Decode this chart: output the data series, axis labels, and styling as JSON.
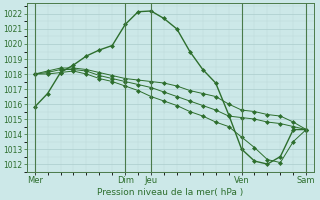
{
  "title": "Pression niveau de la mer( hPa )",
  "bg_color": "#cce8e8",
  "grid_major_color": "#aacccc",
  "grid_minor_color": "#bcd8d8",
  "line_color": "#2d6e2d",
  "vline_color": "#4a7a4a",
  "ylim": [
    1011.5,
    1022.7
  ],
  "yticks": [
    1012,
    1013,
    1014,
    1015,
    1016,
    1017,
    1018,
    1019,
    1020,
    1021,
    1022
  ],
  "xtick_pos": [
    0,
    3.5,
    4.5,
    8.0,
    10.5
  ],
  "xtick_lab": [
    "Mer",
    "Dim",
    "Jeu",
    "Ven",
    "Sam"
  ],
  "vlines_x": [
    0,
    3.5,
    4.5,
    8.0,
    10.5
  ],
  "xlim": [
    -0.3,
    10.8
  ],
  "series1_x": [
    0,
    0.5,
    1.0,
    1.5,
    2.0,
    2.5,
    3.0,
    3.5,
    4.0,
    4.5,
    5.0,
    5.5,
    6.0,
    6.5,
    7.0,
    7.5,
    8.0,
    8.5,
    9.0,
    9.5,
    10.0,
    10.5
  ],
  "series1_y": [
    1015.8,
    1016.7,
    1018.1,
    1018.6,
    1019.2,
    1019.6,
    1019.9,
    1021.3,
    1022.15,
    1022.2,
    1021.7,
    1021.0,
    1019.5,
    1018.3,
    1017.4,
    1015.3,
    1013.0,
    1012.2,
    1012.0,
    1012.5,
    1014.3,
    1014.3
  ],
  "series2_x": [
    0,
    0.5,
    1.0,
    1.5,
    2.0,
    2.5,
    3.0,
    3.5,
    4.0,
    4.5,
    5.0,
    5.5,
    6.0,
    6.5,
    7.0,
    7.5,
    8.0,
    8.5,
    9.0,
    9.5,
    10.0,
    10.5
  ],
  "series2_y": [
    1018.0,
    1018.2,
    1018.4,
    1018.4,
    1018.3,
    1018.1,
    1017.9,
    1017.7,
    1017.6,
    1017.5,
    1017.4,
    1017.2,
    1016.9,
    1016.7,
    1016.5,
    1016.0,
    1015.6,
    1015.5,
    1015.3,
    1015.2,
    1014.8,
    1014.3
  ],
  "series3_x": [
    0,
    0.5,
    1.0,
    1.5,
    2.0,
    2.5,
    3.0,
    3.5,
    4.0,
    4.5,
    5.0,
    5.5,
    6.0,
    6.5,
    7.0,
    7.5,
    8.0,
    8.5,
    9.0,
    9.5,
    10.0,
    10.5
  ],
  "series3_y": [
    1018.0,
    1018.1,
    1018.3,
    1018.3,
    1018.2,
    1017.9,
    1017.7,
    1017.5,
    1017.3,
    1017.1,
    1016.8,
    1016.5,
    1016.2,
    1015.9,
    1015.6,
    1015.2,
    1015.1,
    1015.0,
    1014.8,
    1014.7,
    1014.5,
    1014.3
  ],
  "series4_x": [
    0,
    0.5,
    1.0,
    1.5,
    2.0,
    2.5,
    3.0,
    3.5,
    4.0,
    4.5,
    5.0,
    5.5,
    6.0,
    6.5,
    7.0,
    7.5,
    8.0,
    8.5,
    9.0,
    9.5,
    10.0,
    10.5
  ],
  "series4_y": [
    1018.0,
    1018.0,
    1018.1,
    1018.2,
    1018.0,
    1017.7,
    1017.5,
    1017.2,
    1016.9,
    1016.5,
    1016.2,
    1015.9,
    1015.5,
    1015.2,
    1014.8,
    1014.5,
    1013.8,
    1013.1,
    1012.3,
    1012.1,
    1013.5,
    1014.3
  ]
}
